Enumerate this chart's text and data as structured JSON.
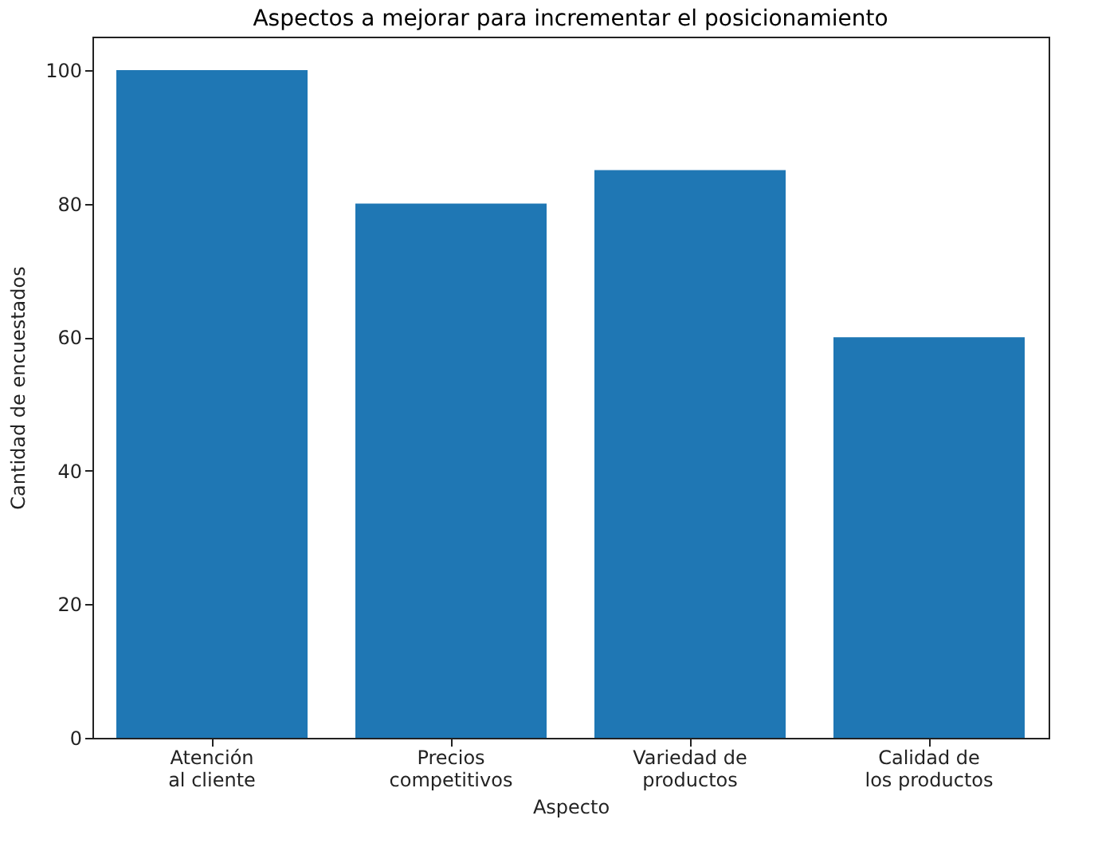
{
  "chart_data": {
    "type": "bar",
    "title": "Aspectos a mejorar para incrementar el posicionamiento",
    "xlabel": "Aspecto",
    "ylabel": "Cantidad de encuestados",
    "categories": [
      "Atención al cliente",
      "Precios competitivos",
      "Variedad de productos",
      "Calidad de los productos"
    ],
    "values": [
      100,
      80,
      85,
      60
    ],
    "color": "#1f77b4",
    "ylim": [
      0,
      105
    ],
    "yticks": [
      0,
      20,
      40,
      60,
      80,
      100
    ],
    "grid": false
  }
}
